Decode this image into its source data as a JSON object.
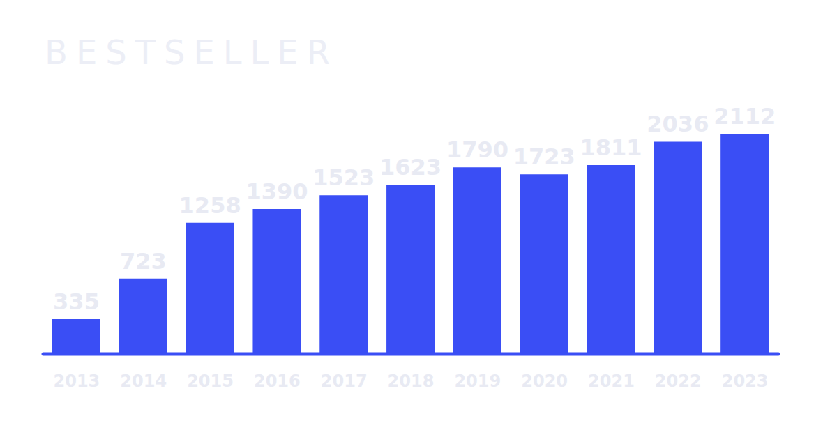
{
  "chart_data": {
    "type": "bar",
    "title": "BESTSELLER",
    "categories": [
      "2013",
      "2014",
      "2015",
      "2016",
      "2017",
      "2018",
      "2019",
      "2020",
      "2021",
      "2022",
      "2023"
    ],
    "values": [
      335,
      723,
      1258,
      1390,
      1523,
      1623,
      1790,
      1723,
      1811,
      2036,
      2112
    ],
    "color": "#3a4ef5",
    "ylim": [
      0,
      2500
    ],
    "data_labels": true,
    "tick_labels": "x",
    "grid": false
  }
}
